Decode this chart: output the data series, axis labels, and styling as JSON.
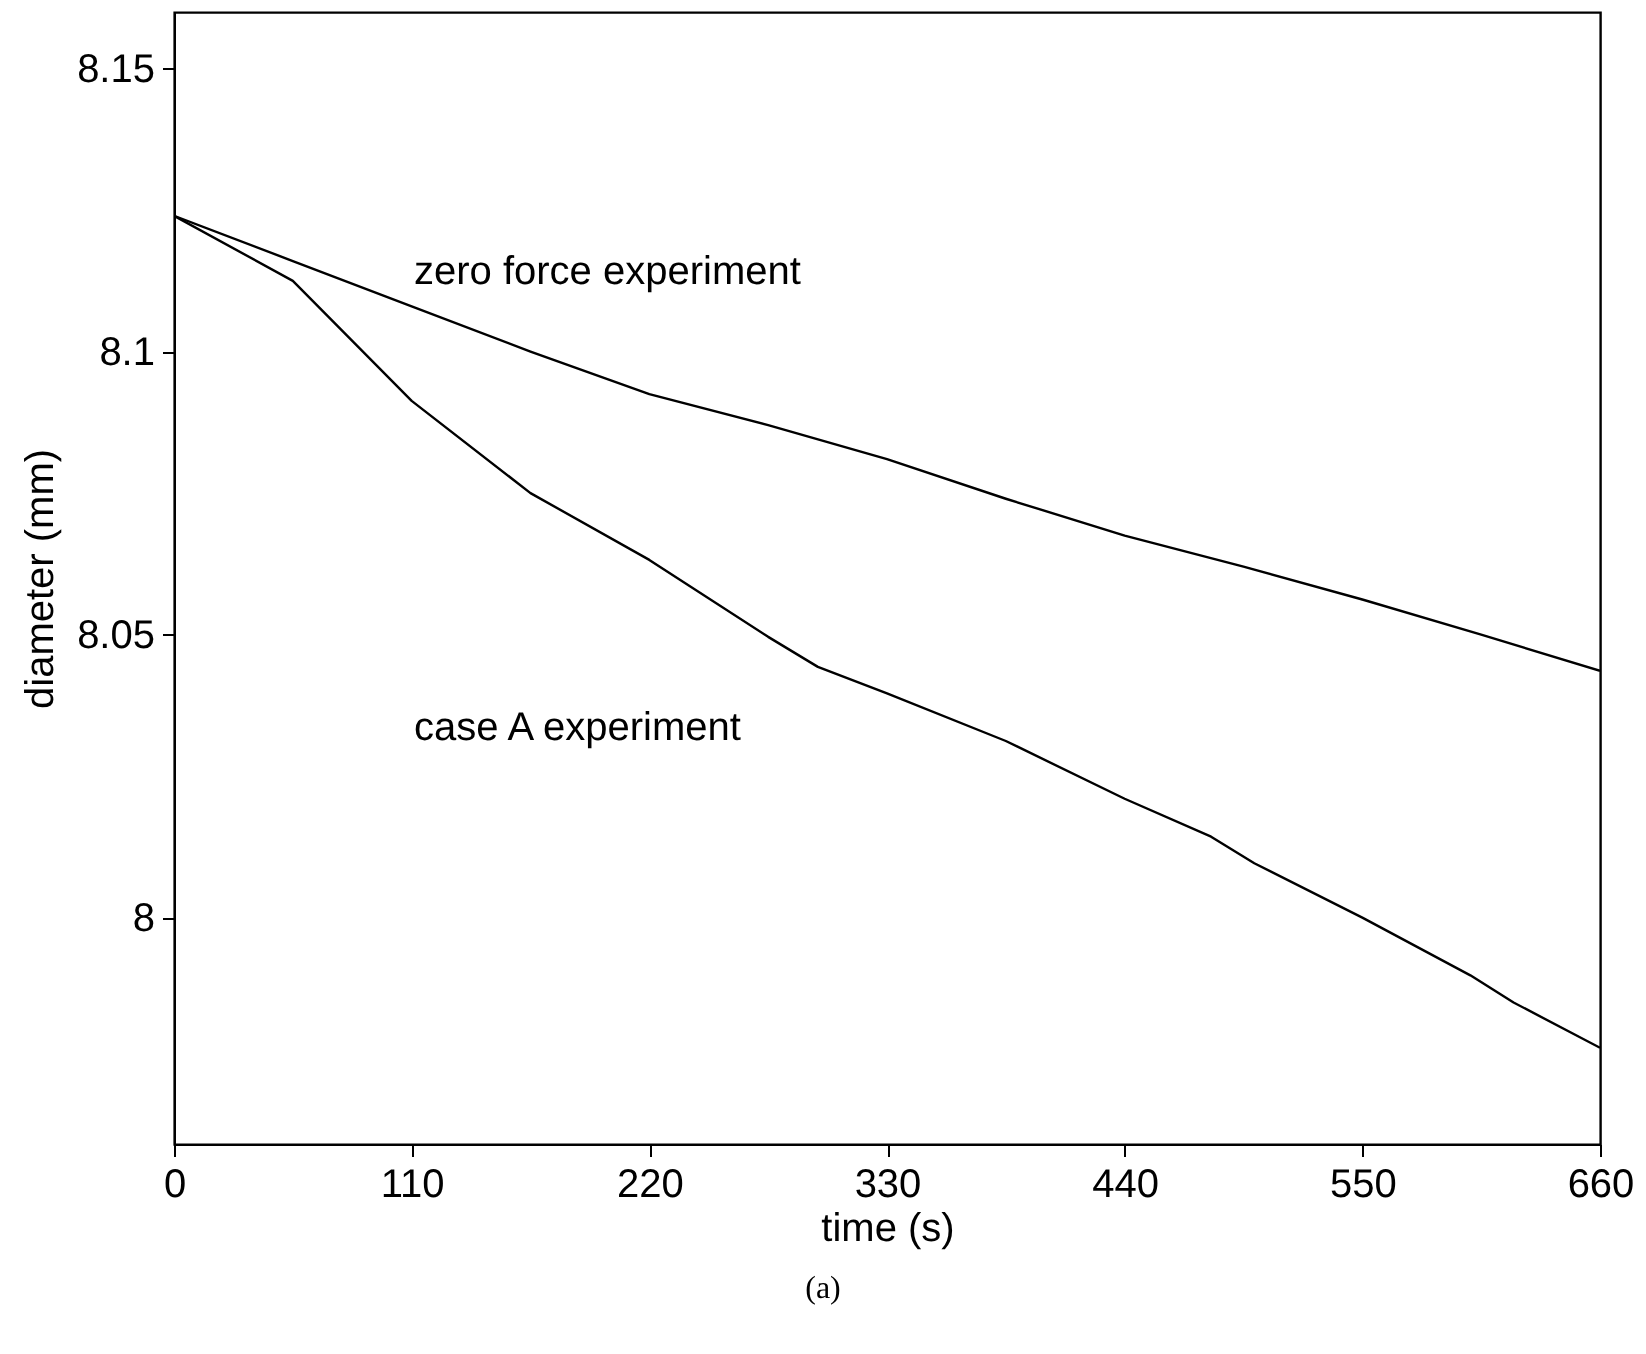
{
  "chart_data": {
    "type": "line",
    "xlabel": "time (s)",
    "ylabel": "diameter (mm)",
    "xlim": [
      0,
      660
    ],
    "xticks": [
      0,
      110,
      220,
      330,
      440,
      550,
      660
    ],
    "ylim": [
      7.96,
      8.16
    ],
    "yticks": [
      8,
      8.05,
      8.1,
      8.15
    ],
    "grid": false,
    "series": [
      {
        "color": "#000000",
        "x": [
          0,
          55,
          110,
          165,
          220,
          275,
          330,
          385,
          440,
          495,
          550,
          605,
          660
        ],
        "values": [
          8.124,
          8.116,
          8.108,
          8.1,
          8.0925,
          8.087,
          8.081,
          8.074,
          8.0675,
          8.062,
          8.0562,
          8.05,
          8.0436
        ]
      },
      {
        "color": "#000000",
        "x": [
          0,
          55,
          110,
          165,
          220,
          275,
          298,
          330,
          385,
          440,
          480,
          500,
          550,
          600,
          620,
          660
        ],
        "values": [
          8.124,
          8.1125,
          8.0913,
          8.075,
          8.0632,
          8.0496,
          8.0443,
          8.0396,
          8.0312,
          8.021,
          8.0143,
          8.0096,
          8.0,
          7.9898,
          7.985,
          7.977
        ]
      }
    ],
    "annotations": [
      "zero force experiment",
      "case A experiment",
      "(a)"
    ]
  }
}
